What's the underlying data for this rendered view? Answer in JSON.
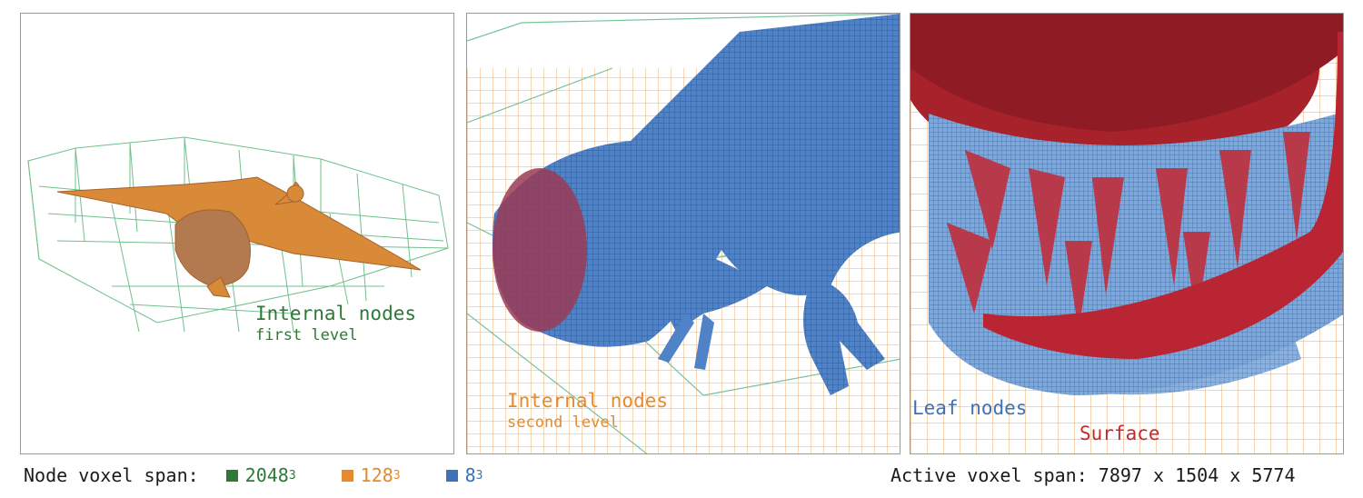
{
  "panels": [
    {
      "title": "Internal nodes",
      "subtitle": "first level",
      "color": "#2c7a36"
    },
    {
      "title": "Internal nodes",
      "subtitle": "second level",
      "color": "#e58a2e"
    },
    {
      "title": "Leaf nodes",
      "subtitle": "Surface",
      "color": "#3b72b8",
      "subtitle_color": "#c8272c"
    }
  ],
  "legend": {
    "label": "Node voxel span:",
    "items": [
      {
        "base": "2048",
        "exp": "3",
        "color": "#2c7a36"
      },
      {
        "base": "128",
        "exp": "3",
        "color": "#e58a2e"
      },
      {
        "base": "8",
        "exp": "3",
        "color": "#3b72b8"
      }
    ],
    "active_span": "Active voxel span: 7897 x 1504 x 5774"
  }
}
